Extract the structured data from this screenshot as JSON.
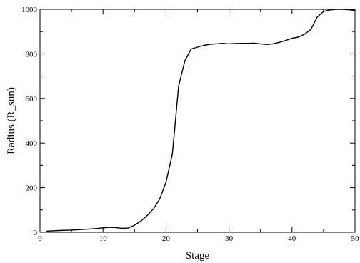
{
  "chart_data": {
    "type": "line",
    "title": "",
    "xlabel": "Stage",
    "ylabel": "Radius (R_sun)",
    "xlim": [
      0,
      50
    ],
    "ylim": [
      0,
      1000
    ],
    "xticks": [
      0,
      10,
      20,
      30,
      40,
      50
    ],
    "yticks": [
      0,
      200,
      400,
      600,
      800,
      1000
    ],
    "xtick_labels": [
      "0",
      "10",
      "20",
      "30",
      "40",
      "50"
    ],
    "ytick_labels": [
      "0",
      "200",
      "400",
      "600",
      "800",
      "1000"
    ],
    "grid": false,
    "legend": false,
    "line_color": "#000000",
    "series": [
      {
        "x": [
          1,
          3,
          5,
          7,
          9,
          10,
          11,
          12,
          13,
          14,
          15,
          16,
          17,
          18,
          19,
          20,
          21,
          21.5,
          22,
          23,
          24,
          25,
          26,
          27,
          28,
          29,
          30,
          31,
          32,
          33,
          34,
          35,
          36,
          37,
          38,
          39,
          40,
          41,
          42,
          43,
          44,
          45,
          46,
          47,
          48,
          49,
          50
        ],
        "y": [
          5,
          8,
          10,
          13,
          17,
          20,
          22,
          21,
          18,
          19,
          32,
          50,
          75,
          105,
          150,
          225,
          350,
          500,
          655,
          770,
          822,
          830,
          838,
          843,
          845,
          847,
          845,
          846,
          847,
          847,
          848,
          845,
          842,
          845,
          852,
          860,
          870,
          875,
          888,
          910,
          965,
          990,
          997,
          1000,
          1000,
          998,
          995
        ]
      }
    ]
  }
}
